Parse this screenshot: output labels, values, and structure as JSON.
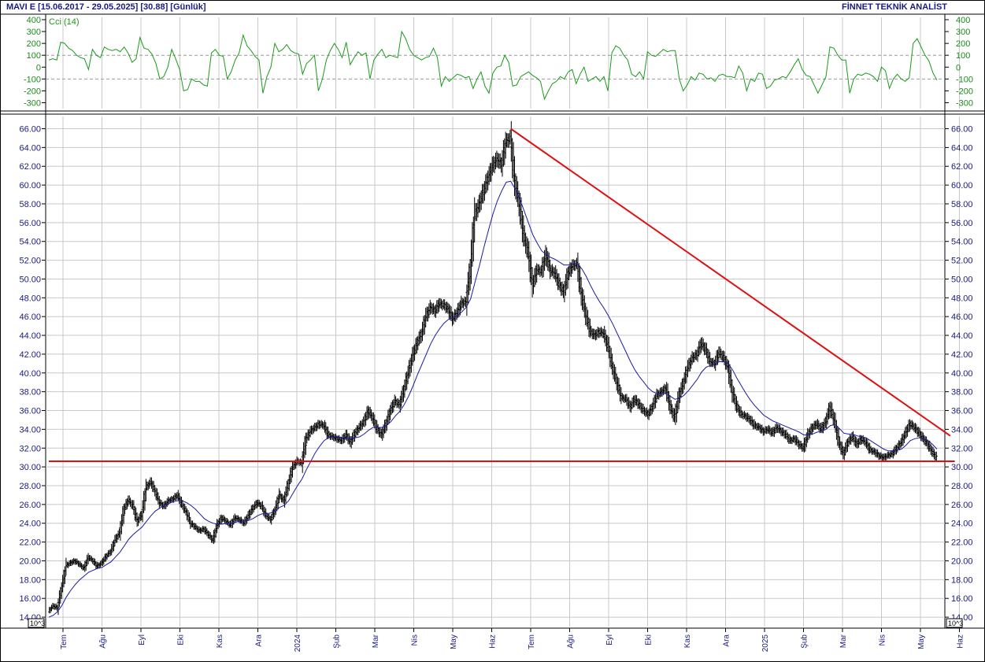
{
  "header": {
    "left": "MAVI  E  [15.06.2017 - 29.05.2025]  [30.88]  [Günlük]",
    "right": "FİNNET TEKNİK ANALİST"
  },
  "colors": {
    "price_bars": "#000000",
    "moving_average": "#1a1aa0",
    "cci_line": "#1a9a1a",
    "trendline": "#dd1111",
    "grid": "#c8c8c8",
    "axis_text": "#1a1a80"
  },
  "chart_data": [
    {
      "type": "line",
      "title": "Cci (14)",
      "y_ticks": [
        400,
        300,
        200,
        100,
        0,
        -100,
        -200,
        -300
      ],
      "y_tick_labels": [
        "400",
        "300",
        "200",
        "100",
        "0",
        "-100",
        "-200",
        "-300"
      ],
      "ylim": [
        -350,
        420
      ],
      "dashed_levels": [
        100,
        -100
      ],
      "series": [
        {
          "values": [
            60,
            70,
            60,
            210,
            200,
            160,
            140,
            100,
            80,
            70,
            -20,
            150,
            100,
            80,
            170,
            150,
            140,
            150,
            130,
            170,
            120,
            40,
            70,
            250,
            160,
            150,
            110,
            30,
            -100,
            -80,
            0,
            150,
            70,
            -20,
            -200,
            -190,
            -100,
            -120,
            -120,
            -150,
            -160,
            120,
            150,
            100,
            90,
            -100,
            -40,
            60,
            120,
            270,
            180,
            140,
            90,
            60,
            -220,
            -80,
            0,
            200,
            130,
            150,
            190,
            140,
            120,
            110,
            -60,
            30,
            60,
            100,
            -200,
            -100,
            60,
            140,
            200,
            150,
            80,
            210,
            20,
            80,
            130,
            100,
            120,
            -100,
            60,
            110,
            150,
            80,
            100,
            90,
            80,
            300,
            240,
            150,
            100,
            80,
            60,
            80,
            90,
            160,
            80,
            -160,
            -80,
            -120,
            -90,
            -60,
            -70,
            -90,
            -80,
            -180,
            -100,
            -40,
            -160,
            -220,
            -50,
            0,
            10,
            100,
            40,
            -160,
            -150,
            -80,
            -60,
            -40,
            -70,
            -90,
            -120,
            -270,
            -200,
            -140,
            -120,
            -80,
            -100,
            -40,
            -20,
            -140,
            -60,
            0,
            -120,
            -100,
            -80,
            -120,
            -80,
            -200,
            120,
            180,
            160,
            100,
            60,
            -60,
            -80,
            -40,
            -100,
            130,
            100,
            90,
            120,
            150,
            130,
            140,
            140,
            -100,
            -200,
            -150,
            -80,
            -110,
            -50,
            -60,
            -100,
            -90,
            -120,
            -70,
            -60,
            -80,
            -80,
            -90,
            10,
            -50,
            -200,
            -100,
            -120,
            -50,
            -60,
            -180,
            -160,
            -110,
            -100,
            -80,
            -90,
            -40,
            20,
            70,
            -20,
            -70,
            -80,
            -150,
            -220,
            -150,
            -80,
            170,
            160,
            100,
            60,
            60,
            -220,
            -100,
            -60,
            -70,
            -50,
            -60,
            -80,
            -120,
            0,
            -30,
            -180,
            -100,
            -60,
            -100,
            -120,
            -90,
            200,
            240,
            170,
            100,
            50,
            -50,
            -110
          ]
        }
      ]
    },
    {
      "type": "bar",
      "y_ticks": [
        66,
        64,
        62,
        60,
        58,
        56,
        54,
        52,
        50,
        48,
        46,
        44,
        42,
        40,
        38,
        36,
        34,
        32,
        30,
        28,
        26,
        24,
        22,
        20,
        18,
        16,
        14
      ],
      "y_tick_labels": [
        "66.00",
        "64.00",
        "62.00",
        "60.00",
        "58.00",
        "56.00",
        "54.00",
        "52.00",
        "50.00",
        "48.00",
        "46.00",
        "44.00",
        "42.00",
        "40.00",
        "38.00",
        "36.00",
        "34.00",
        "32.00",
        "30.00",
        "28.00",
        "26.00",
        "24.00",
        "22.00",
        "20.00",
        "18.00",
        "16.00",
        "14.00"
      ],
      "ylim": [
        13.0,
        67.3
      ],
      "scale_label": "10^3",
      "x_tick_labels": [
        "Tem",
        "Ağu",
        "Eyl",
        "Eki",
        "Kas",
        "Ara",
        "2024",
        "Şub",
        "Mar",
        "Nis",
        "May",
        "Haz",
        "Tem",
        "Ağu",
        "Eyl",
        "Eki",
        "Kas",
        "Ara",
        "2025",
        "Şub",
        "Mar",
        "Nis",
        "May",
        "Haz"
      ],
      "price_close": [
        14.6,
        15.2,
        15.0,
        17.2,
        19.5,
        19.8,
        20.0,
        19.6,
        19.2,
        20.4,
        20.0,
        19.4,
        19.8,
        20.5,
        21.0,
        22.2,
        23.0,
        25.5,
        26.5,
        25.8,
        24.2,
        25.0,
        27.8,
        28.4,
        27.4,
        26.2,
        25.8,
        26.4,
        26.6,
        27.0,
        26.0,
        25.2,
        24.0,
        23.6,
        23.2,
        23.4,
        22.8,
        22.2,
        23.8,
        24.6,
        24.2,
        23.8,
        24.6,
        24.4,
        24.0,
        24.8,
        25.6,
        26.2,
        25.8,
        24.8,
        24.4,
        25.4,
        27.0,
        26.4,
        28.2,
        30.0,
        30.6,
        30.4,
        33.0,
        33.8,
        34.2,
        34.6,
        34.4,
        33.4,
        33.2,
        33.0,
        32.8,
        33.4,
        32.6,
        33.6,
        34.2,
        34.8,
        36.0,
        35.2,
        34.0,
        33.4,
        34.6,
        36.0,
        37.0,
        36.6,
        38.2,
        40.0,
        41.8,
        43.2,
        44.2,
        46.0,
        47.0,
        46.6,
        47.4,
        47.2,
        46.8,
        45.8,
        46.4,
        47.4,
        47.6,
        51.2,
        56.8,
        58.0,
        59.4,
        60.8,
        62.0,
        62.8,
        62.2,
        64.6,
        65.0,
        60.4,
        58.0,
        54.6,
        52.8,
        49.4,
        51.0,
        50.8,
        52.6,
        51.0,
        50.6,
        49.4,
        48.6,
        50.6,
        51.4,
        51.6,
        48.4,
        46.2,
        44.4,
        44.0,
        44.4,
        44.2,
        42.8,
        40.6,
        39.0,
        37.4,
        37.2,
        36.4,
        37.2,
        36.6,
        36.0,
        35.6,
        36.4,
        37.6,
        38.0,
        38.4,
        36.4,
        35.2,
        37.6,
        39.0,
        40.6,
        41.6,
        42.0,
        43.2,
        42.4,
        41.2,
        41.0,
        42.2,
        41.6,
        40.6,
        38.0,
        36.4,
        35.6,
        35.4,
        35.0,
        34.4,
        34.2,
        33.8,
        34.0,
        33.6,
        34.2,
        33.8,
        33.4,
        32.8,
        33.0,
        32.4,
        32.0,
        33.4,
        34.2,
        34.6,
        34.0,
        34.8,
        36.4,
        34.8,
        32.6,
        31.4,
        32.6,
        33.2,
        32.4,
        33.0,
        32.6,
        31.8,
        31.6,
        31.2,
        31.0,
        31.2,
        31.4,
        32.0,
        32.6,
        33.6,
        34.6,
        34.2,
        33.6,
        33.0,
        32.4,
        31.6,
        30.9
      ],
      "moving_average": [
        14.0,
        14.2,
        14.6,
        15.3,
        16.2,
        16.9,
        17.5,
        18.0,
        18.4,
        18.8,
        19.0,
        19.2,
        19.3,
        19.6,
        19.9,
        20.4,
        20.9,
        21.6,
        22.3,
        22.8,
        23.2,
        23.6,
        24.2,
        24.8,
        25.3,
        25.6,
        25.9,
        26.1,
        26.3,
        26.4,
        26.4,
        26.2,
        25.9,
        25.5,
        25.0,
        24.5,
        24.2,
        24.0,
        23.9,
        23.9,
        24.0,
        24.0,
        24.1,
        24.2,
        24.2,
        24.3,
        24.5,
        24.8,
        25.0,
        25.0,
        25.1,
        25.3,
        25.7,
        25.9,
        26.4,
        27.2,
        28.0,
        28.7,
        29.7,
        30.6,
        31.5,
        32.2,
        32.8,
        33.1,
        33.2,
        33.2,
        33.1,
        33.1,
        33.0,
        33.1,
        33.2,
        33.5,
        33.9,
        34.2,
        34.2,
        34.2,
        34.4,
        34.8,
        35.4,
        35.9,
        36.6,
        37.5,
        38.6,
        39.8,
        40.9,
        42.0,
        43.1,
        44.0,
        44.7,
        45.3,
        45.7,
        45.9,
        46.1,
        46.5,
        47.0,
        47.9,
        49.7,
        51.5,
        53.4,
        55.2,
        56.9,
        58.3,
        59.4,
        60.3,
        60.4,
        59.6,
        58.6,
        57.3,
        56.0,
        54.7,
        53.8,
        53.0,
        52.6,
        52.3,
        52.1,
        51.8,
        51.5,
        51.5,
        51.6,
        51.6,
        51.1,
        50.3,
        49.3,
        48.4,
        47.6,
        46.9,
        46.1,
        45.2,
        44.2,
        43.2,
        42.2,
        41.2,
        40.3,
        39.6,
        39.0,
        38.4,
        38.0,
        37.8,
        37.8,
        37.8,
        37.5,
        37.2,
        37.3,
        37.6,
        38.1,
        38.7,
        39.3,
        40.1,
        40.6,
        40.8,
        41.0,
        41.2,
        41.2,
        41.0,
        40.3,
        39.4,
        38.6,
        37.8,
        37.1,
        36.5,
        36.0,
        35.5,
        35.2,
        34.9,
        34.7,
        34.5,
        34.3,
        34.1,
        33.9,
        33.7,
        33.4,
        33.4,
        33.5,
        33.7,
        33.8,
        34.0,
        34.4,
        34.5,
        34.1,
        33.6,
        33.5,
        33.5,
        33.3,
        33.2,
        33.1,
        32.8,
        32.5,
        32.2,
        31.9,
        31.7,
        31.7,
        31.8,
        31.9,
        32.3,
        32.8,
        33.0,
        33.1,
        33.0,
        32.8,
        32.4,
        31.9
      ],
      "trendlines": [
        {
          "from": {
            "bar_index": 104,
            "price": 66.0
          },
          "to": {
            "bar_index": 203,
            "price": 33.3
          }
        },
        {
          "from": {
            "bar_index": 0,
            "price": 30.6
          },
          "to": {
            "bar_index": 204,
            "price": 30.6
          }
        }
      ]
    }
  ]
}
